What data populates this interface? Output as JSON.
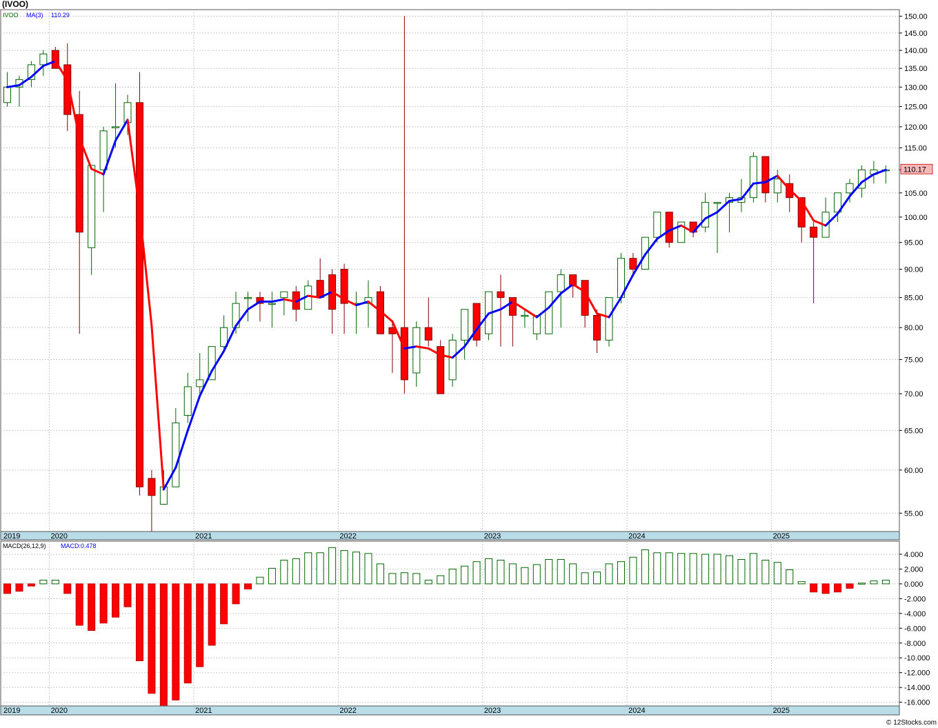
{
  "header": {
    "title": "(IVOO)"
  },
  "legend": {
    "symbol": "IVOO",
    "ma_label": "MA(3)",
    "ma_value": "110.29",
    "macd_label": "MACD(26,12,9)",
    "macd_value": "MACD:0.478"
  },
  "footer": {
    "copyright": "© 12Stocks.com"
  },
  "colors": {
    "up_candle_stroke": "#006400",
    "down_candle_fill": "#ff0000",
    "ma_up": "#0000ff",
    "ma_down": "#ff0000",
    "axis_band": "#b8dce8",
    "last_price_box": "#f4b8b8"
  },
  "chart_data": [
    {
      "type": "candlestick",
      "title": "(IVOO)",
      "yscale": "log",
      "ylim": [
        53,
        152
      ],
      "y_ticks": [
        "150.00",
        "145.00",
        "140.00",
        "135.00",
        "130.00",
        "125.00",
        "120.00",
        "115.00",
        "110.00",
        "105.00",
        "100.00",
        "95.00",
        "90.00",
        "85.00",
        "80.00",
        "75.00",
        "70.00",
        "65.00",
        "60.00",
        "55.00"
      ],
      "x_labels": [
        {
          "label": "2019",
          "index": -0.5
        },
        {
          "label": "2020",
          "index": 3.5
        },
        {
          "label": "2021",
          "index": 15.5
        },
        {
          "label": "2022",
          "index": 27.5
        },
        {
          "label": "2023",
          "index": 39.5
        },
        {
          "label": "2024",
          "index": 51.5
        },
        {
          "label": "2025",
          "index": 63.5
        }
      ],
      "last_price": "110.17",
      "ohlc": [
        [
          126,
          134,
          125,
          130
        ],
        [
          130,
          133,
          125,
          132
        ],
        [
          132,
          137,
          130,
          136
        ],
        [
          136,
          140,
          133,
          139
        ],
        [
          140,
          141,
          135,
          135
        ],
        [
          136,
          142,
          119,
          123
        ],
        [
          123,
          129,
          79,
          97
        ],
        [
          94,
          111,
          89,
          111
        ],
        [
          110,
          120,
          101,
          119
        ],
        [
          120,
          131,
          115,
          120
        ],
        [
          121,
          128,
          118,
          126
        ],
        [
          126,
          134,
          57,
          58
        ],
        [
          59,
          60,
          53,
          57
        ],
        [
          56,
          60,
          56,
          58
        ],
        [
          58,
          68,
          58,
          66
        ],
        [
          67,
          73,
          66,
          71
        ],
        [
          71,
          76,
          70,
          72
        ],
        [
          72,
          77,
          72,
          77
        ],
        [
          77,
          82,
          76,
          80
        ],
        [
          80,
          86,
          79,
          84
        ],
        [
          85,
          86,
          81,
          85
        ],
        [
          85,
          86,
          81,
          84
        ],
        [
          84,
          86,
          80,
          84
        ],
        [
          85,
          86,
          82,
          86
        ],
        [
          86,
          87,
          81,
          83
        ],
        [
          83,
          88,
          83,
          87
        ],
        [
          88,
          92,
          85,
          85
        ],
        [
          89,
          90,
          79,
          83
        ],
        [
          90,
          91,
          79,
          84
        ],
        [
          84,
          86,
          79,
          84
        ],
        [
          84,
          88,
          80,
          85
        ],
        [
          86,
          87,
          79,
          79
        ],
        [
          80,
          81,
          73,
          79
        ],
        [
          80,
          150,
          70,
          72
        ],
        [
          73,
          81,
          71,
          80
        ],
        [
          80,
          85,
          77,
          78
        ],
        [
          77,
          78,
          70,
          70
        ],
        [
          72,
          79,
          71,
          78
        ],
        [
          78,
          83,
          75,
          83
        ],
        [
          84,
          84,
          77,
          78
        ],
        [
          79,
          86,
          78,
          86
        ],
        [
          86,
          89,
          77,
          85
        ],
        [
          85,
          85,
          77,
          82
        ],
        [
          82,
          83,
          80,
          82
        ],
        [
          79,
          82,
          78,
          82
        ],
        [
          79,
          86,
          79,
          86
        ],
        [
          86,
          90,
          80,
          89
        ],
        [
          89,
          89,
          85,
          87
        ],
        [
          88,
          88,
          80,
          82
        ],
        [
          82,
          83,
          76,
          78
        ],
        [
          78,
          85,
          77,
          85
        ],
        [
          85,
          93,
          84,
          92
        ],
        [
          92,
          93,
          89,
          90
        ],
        [
          90,
          96,
          90,
          96
        ],
        [
          96,
          101,
          95,
          101
        ],
        [
          101,
          101,
          94,
          95
        ],
        [
          95,
          99,
          95,
          99
        ],
        [
          99,
          99,
          96,
          97
        ],
        [
          98,
          105,
          97,
          103
        ],
        [
          103,
          103,
          93,
          103
        ],
        [
          103,
          105,
          97,
          104
        ],
        [
          103,
          108,
          101,
          104
        ],
        [
          104,
          114,
          103,
          113
        ],
        [
          113,
          113,
          103,
          105
        ],
        [
          105,
          110,
          103,
          108
        ],
        [
          107,
          109,
          101,
          104
        ],
        [
          104,
          104,
          95,
          98
        ],
        [
          98,
          99,
          84,
          96
        ],
        [
          96,
          104,
          96,
          101
        ],
        [
          101,
          105,
          99,
          105
        ],
        [
          105,
          108,
          103,
          107
        ],
        [
          106,
          111,
          104,
          110
        ],
        [
          109,
          112,
          107,
          110
        ],
        [
          110,
          111,
          107,
          110
        ]
      ],
      "ma3": [
        130.0,
        130.5,
        132.7,
        135.7,
        137.0,
        131.8,
        117.3,
        110.2,
        109.0,
        116.7,
        121.7,
        101.3,
        80.3,
        57.7,
        60.3,
        65.0,
        69.7,
        73.3,
        76.3,
        80.3,
        83.0,
        84.3,
        84.3,
        84.7,
        84.3,
        85.3,
        85.0,
        86.0,
        84.7,
        83.7,
        84.3,
        82.7,
        81.0,
        76.7,
        77.0,
        76.7,
        75.7,
        75.3,
        77.0,
        79.7,
        82.3,
        83.0,
        84.3,
        83.0,
        81.7,
        83.3,
        85.7,
        87.3,
        86.0,
        82.3,
        81.7,
        85.0,
        89.0,
        92.7,
        95.7,
        97.3,
        98.3,
        97.0,
        99.7,
        101.0,
        103.3,
        103.7,
        107.0,
        107.3,
        108.7,
        105.7,
        103.3,
        99.3,
        98.3,
        100.7,
        104.3,
        107.3,
        109.0,
        110.0
      ]
    },
    {
      "type": "bar",
      "title": "MACD(26,12,9)",
      "ylim": [
        -16.5,
        5.3
      ],
      "y_ticks": [
        "4.000",
        "2.000",
        "0.000",
        "-2.000",
        "-4.000",
        "-6.000",
        "-8.000",
        "-10.000",
        "-12.000",
        "-14.000",
        "-16.000"
      ],
      "last_value": "0.478",
      "values": [
        -1.3,
        -1.0,
        -0.3,
        0.5,
        0.5,
        -1.3,
        -5.6,
        -6.3,
        -5.3,
        -4.5,
        -3.1,
        -10.4,
        -14.8,
        -16.5,
        -15.7,
        -13.4,
        -11.2,
        -8.3,
        -5.4,
        -2.7,
        -0.7,
        0.9,
        2.1,
        3.2,
        3.4,
        4.2,
        4.2,
        4.9,
        4.5,
        4.3,
        4.1,
        2.7,
        1.4,
        1.5,
        1.4,
        0.5,
        1.1,
        2.0,
        2.4,
        3.0,
        3.4,
        3.2,
        2.7,
        2.2,
        2.6,
        3.3,
        3.3,
        2.7,
        1.5,
        1.6,
        2.7,
        3.0,
        3.6,
        4.6,
        4.2,
        4.2,
        4.1,
        4.1,
        4.0,
        4.0,
        3.8,
        3.3,
        4.1,
        3.2,
        2.9,
        1.9,
        0.3,
        -1.1,
        -1.3,
        -1.1,
        -0.6,
        0.1,
        0.4,
        0.5
      ]
    }
  ]
}
